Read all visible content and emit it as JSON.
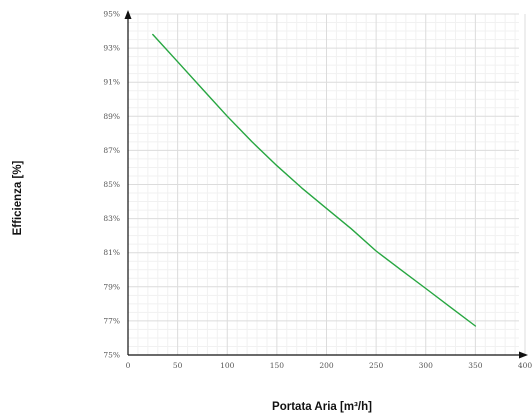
{
  "chart_data": {
    "type": "line",
    "title": "",
    "xlabel": "Portata Aria [m³/h]",
    "ylabel": "Efficienza [%]",
    "xlim": [
      0,
      400
    ],
    "ylim": [
      75,
      95
    ],
    "x_ticks": [
      0,
      50,
      100,
      150,
      200,
      250,
      300,
      350,
      400
    ],
    "y_ticks": [
      75,
      77,
      79,
      81,
      83,
      85,
      87,
      89,
      91,
      93,
      95
    ],
    "x_tick_labels": [
      "0",
      "50",
      "100",
      "150",
      "200",
      "250",
      "300",
      "350",
      "400"
    ],
    "y_tick_labels": [
      "75%",
      "77%",
      "79%",
      "81%",
      "83%",
      "85%",
      "87%",
      "89%",
      "91%",
      "93%",
      "95%"
    ],
    "grid": true,
    "minor_grid": true,
    "colors": {
      "line": "#27a641",
      "axis": "#111111",
      "grid_major": "#dcdcdc",
      "grid_minor": "#f1f1f1"
    },
    "series": [
      {
        "x": [
          25,
          50,
          75,
          100,
          125,
          150,
          175,
          200,
          225,
          250,
          275,
          300,
          325,
          350
        ],
        "values": [
          93.8,
          92.2,
          90.6,
          89.0,
          87.5,
          86.1,
          84.8,
          83.6,
          82.4,
          81.1,
          80.0,
          78.9,
          77.8,
          76.7
        ]
      }
    ]
  }
}
